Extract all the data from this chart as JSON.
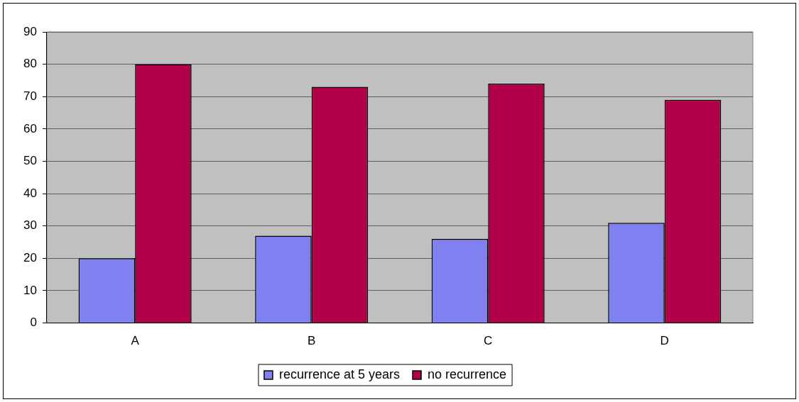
{
  "chart_data": {
    "type": "bar",
    "categories": [
      "A",
      "B",
      "C",
      "D"
    ],
    "series": [
      {
        "name": "recurrence at 5 years",
        "color": "#8080f0",
        "values": [
          20,
          27,
          26,
          31
        ]
      },
      {
        "name": "no recurrence",
        "color": "#b0004a",
        "values": [
          80,
          73,
          74,
          69
        ]
      }
    ],
    "ylim": [
      0,
      90
    ],
    "yticks": [
      0,
      10,
      20,
      30,
      40,
      50,
      60,
      70,
      80,
      90
    ],
    "grid": "y",
    "legend": "bottom"
  }
}
